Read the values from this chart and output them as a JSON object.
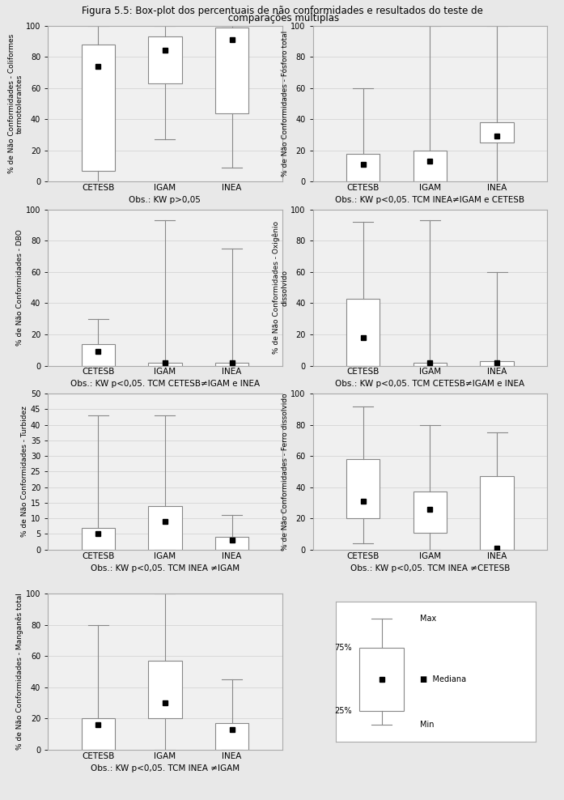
{
  "title_line1": "Figura 5.5: Box-plot dos percentuais de não conformidades e resultados do teste de",
  "title_line2": " comparações múltiplas",
  "plots": [
    {
      "ylabel": "% de Não Conformidades - Coliformes\ntermotolerantes",
      "obs": "Obs.: KW p>0,05",
      "ylim": [
        0,
        100
      ],
      "yticks": [
        0,
        20,
        40,
        60,
        80,
        100
      ],
      "boxes": [
        {
          "label": "CETESB",
          "q1": 7,
          "q3": 88,
          "whislo": 0,
          "whishi": 100,
          "mean": 74
        },
        {
          "label": "IGAM",
          "q1": 63,
          "q3": 93,
          "whislo": 27,
          "whishi": 100,
          "mean": 84
        },
        {
          "label": "INEA",
          "q1": 44,
          "q3": 99,
          "whislo": 9,
          "whishi": 100,
          "mean": 91
        }
      ]
    },
    {
      "ylabel": "% de Não Conformidades - Fósforo total",
      "obs": "Obs.: KW p<0,05. TCM INEA≠IGAM e CETESB",
      "ylim": [
        0,
        100
      ],
      "yticks": [
        0,
        20,
        40,
        60,
        80,
        100
      ],
      "boxes": [
        {
          "label": "CETESB",
          "q1": 0,
          "q3": 18,
          "whislo": 0,
          "whishi": 60,
          "mean": 11
        },
        {
          "label": "IGAM",
          "q1": 0,
          "q3": 20,
          "whislo": 0,
          "whishi": 100,
          "mean": 13
        },
        {
          "label": "INEA",
          "q1": 25,
          "q3": 38,
          "whislo": 0,
          "whishi": 100,
          "mean": 29
        }
      ]
    },
    {
      "ylabel": "% de Não Conformidades - DBO",
      "obs": "Obs.: KW p<0,05. TCM CETESB≠IGAM e INEA",
      "ylim": [
        0,
        100
      ],
      "yticks": [
        0,
        20,
        40,
        60,
        80,
        100
      ],
      "boxes": [
        {
          "label": "CETESB",
          "q1": 0,
          "q3": 14,
          "whislo": 0,
          "whishi": 30,
          "mean": 9
        },
        {
          "label": "IGAM",
          "q1": 0,
          "q3": 2,
          "whislo": 0,
          "whishi": 93,
          "mean": 2
        },
        {
          "label": "INEA",
          "q1": 0,
          "q3": 2,
          "whislo": 0,
          "whishi": 75,
          "mean": 2
        }
      ]
    },
    {
      "ylabel": "% de Não Conformidades - Oxigênio\ndissolvido",
      "obs": "Obs.: KW p<0,05. TCM CETESB≠IGAM e INEA",
      "ylim": [
        0,
        100
      ],
      "yticks": [
        0,
        20,
        40,
        60,
        80,
        100
      ],
      "boxes": [
        {
          "label": "CETESB",
          "q1": 0,
          "q3": 43,
          "whislo": 0,
          "whishi": 92,
          "mean": 18
        },
        {
          "label": "IGAM",
          "q1": 0,
          "q3": 2,
          "whislo": 0,
          "whishi": 93,
          "mean": 2
        },
        {
          "label": "INEA",
          "q1": 0,
          "q3": 3,
          "whislo": 0,
          "whishi": 60,
          "mean": 2
        }
      ]
    },
    {
      "ylabel": "% de Não Conformidades - Turbidez",
      "obs": "Obs.: KW p<0,05. TCM INEA ≠IGAM",
      "ylim": [
        0,
        50
      ],
      "yticks": [
        0,
        5,
        10,
        15,
        20,
        25,
        30,
        35,
        40,
        45,
        50
      ],
      "boxes": [
        {
          "label": "CETESB",
          "q1": 0,
          "q3": 7,
          "whislo": 0,
          "whishi": 43,
          "mean": 5
        },
        {
          "label": "IGAM",
          "q1": 0,
          "q3": 14,
          "whislo": 0,
          "whishi": 43,
          "mean": 9
        },
        {
          "label": "INEA",
          "q1": 0,
          "q3": 4,
          "whislo": 0,
          "whishi": 11,
          "mean": 3
        }
      ]
    },
    {
      "ylabel": "% de Não Conformidades - Ferro dissolvido",
      "obs": "Obs.: KW p<0,05. TCM INEA ≠CETESB",
      "ylim": [
        0,
        100
      ],
      "yticks": [
        0,
        20,
        40,
        60,
        80,
        100
      ],
      "boxes": [
        {
          "label": "CETESB",
          "q1": 20,
          "q3": 58,
          "whislo": 4,
          "whishi": 92,
          "mean": 31
        },
        {
          "label": "IGAM",
          "q1": 11,
          "q3": 37,
          "whislo": 0,
          "whishi": 80,
          "mean": 26
        },
        {
          "label": "INEA",
          "q1": 0,
          "q3": 47,
          "whislo": 0,
          "whishi": 75,
          "mean": 1
        }
      ]
    },
    {
      "ylabel": "% de Não Conformidades - Manganês total",
      "obs": "Obs.: KW p<0,05. TCM INEA ≠IGAM",
      "ylim": [
        0,
        100
      ],
      "yticks": [
        0,
        20,
        40,
        60,
        80,
        100
      ],
      "boxes": [
        {
          "label": "CETESB",
          "q1": 0,
          "q3": 20,
          "whislo": 0,
          "whishi": 80,
          "mean": 16
        },
        {
          "label": "IGAM",
          "q1": 20,
          "q3": 57,
          "whislo": 0,
          "whishi": 100,
          "mean": 30
        },
        {
          "label": "INEA",
          "q1": 0,
          "q3": 17,
          "whislo": 0,
          "whishi": 45,
          "mean": 13
        }
      ]
    }
  ],
  "bg_color": "#e8e8e8",
  "plot_bg_color": "#f0f0f0",
  "box_facecolor": "#ffffff",
  "box_edgecolor": "#888888",
  "whisker_color": "#888888",
  "mean_marker_color": "#000000",
  "grid_color": "#d0d0d0",
  "frame_color": "#aaaaaa"
}
